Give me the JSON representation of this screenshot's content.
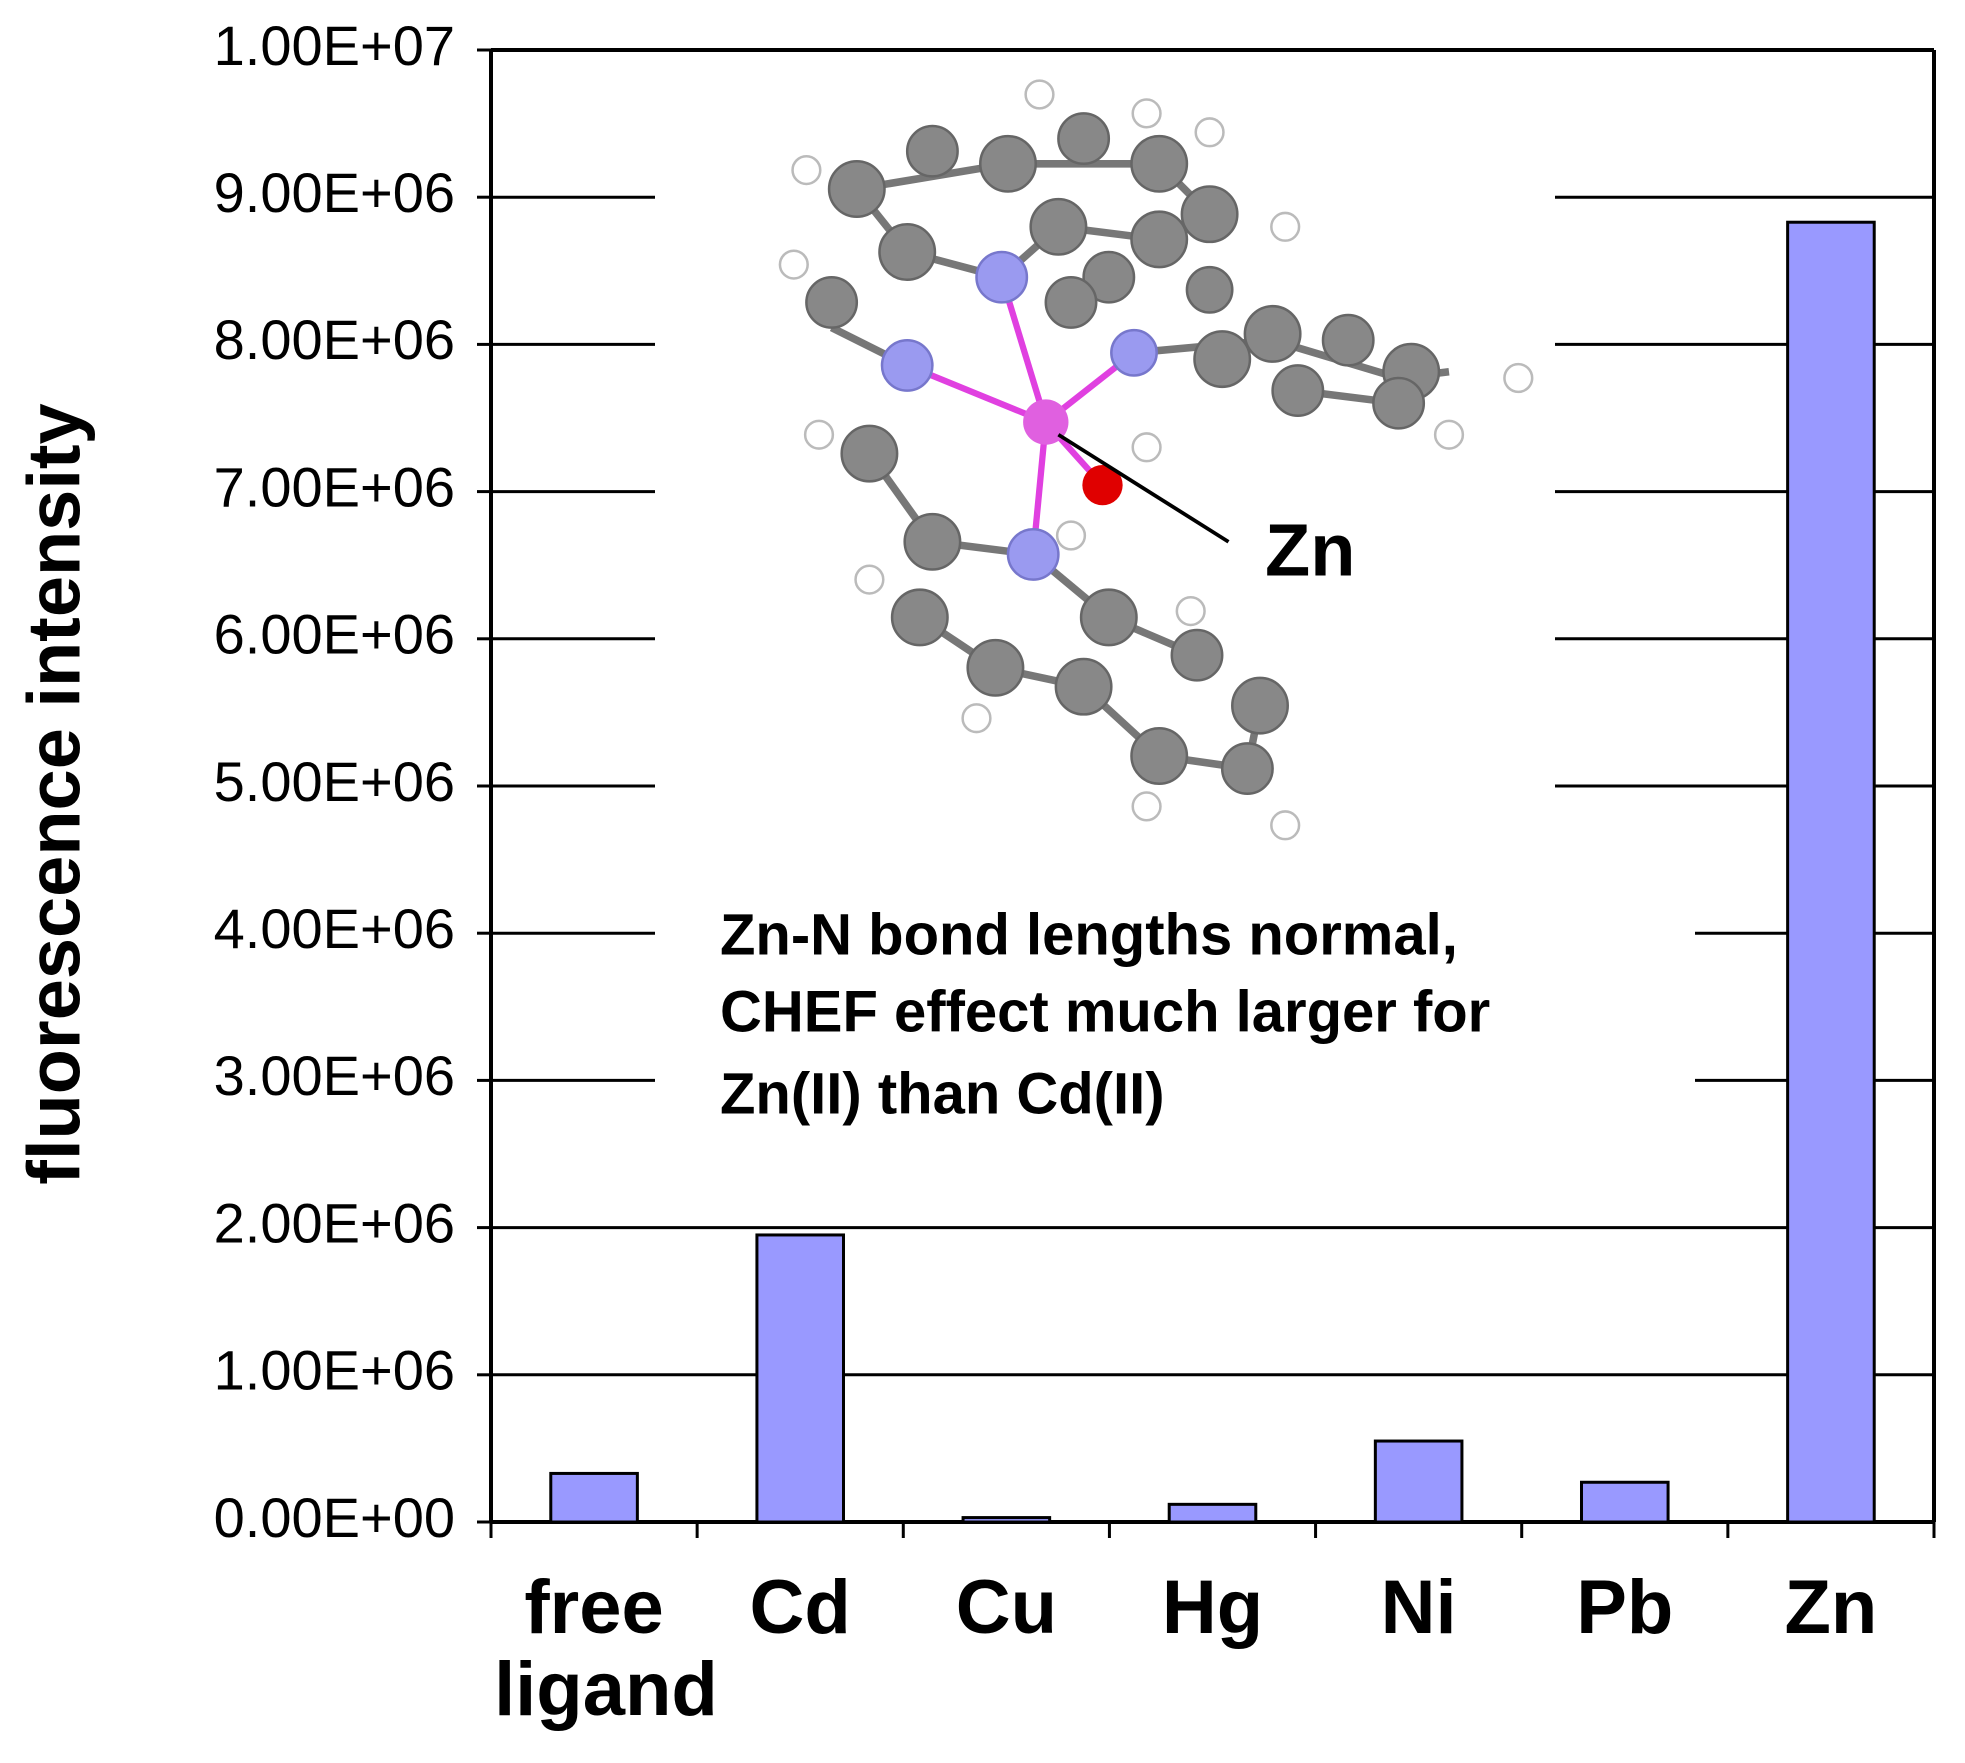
{
  "chart_data": {
    "type": "bar",
    "y_label": "fluorescence intensity",
    "categories": [
      "free ligand",
      "Cd",
      "Cu",
      "Hg",
      "Ni",
      "Pb",
      "Zn"
    ],
    "values": [
      330000,
      1950000,
      30000,
      120000,
      550000,
      270000,
      8830000
    ],
    "color": "#9999ff",
    "ylim": [
      0,
      10000000
    ],
    "yticks": [
      {
        "value": 0,
        "label": "0.00E+00"
      },
      {
        "value": 1000000,
        "label": "1.00E+06"
      },
      {
        "value": 2000000,
        "label": "2.00E+06"
      },
      {
        "value": 3000000,
        "label": "3.00E+06"
      },
      {
        "value": 4000000,
        "label": "4.00E+06"
      },
      {
        "value": 5000000,
        "label": "5.00E+06"
      },
      {
        "value": 6000000,
        "label": "6.00E+06"
      },
      {
        "value": 7000000,
        "label": "7.00E+06"
      },
      {
        "value": 8000000,
        "label": "8.00E+06"
      },
      {
        "value": 9000000,
        "label": "9.00E+06"
      },
      {
        "value": 10000000,
        "label": "1.00E+07"
      }
    ],
    "grid": true,
    "annotations": {
      "atom_label": "Zn",
      "note_lines": [
        "Zn-N bond lengths normal,",
        "CHEF effect much larger for",
        "Zn(II) than Cd(II)"
      ]
    }
  }
}
